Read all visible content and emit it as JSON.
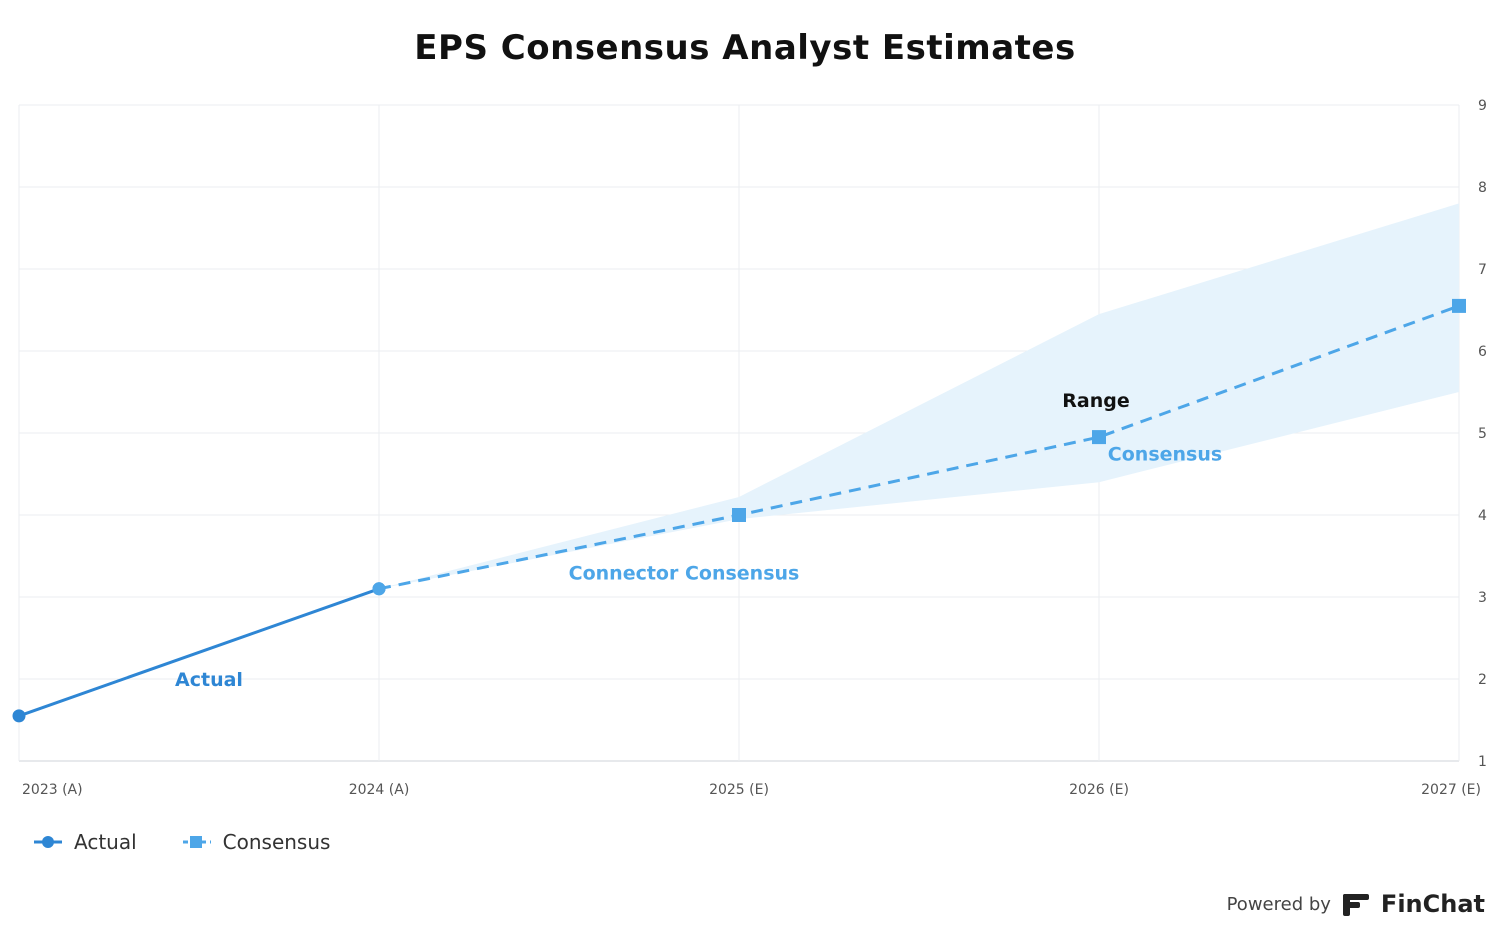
{
  "title": "EPS Consensus Analyst Estimates",
  "footer": {
    "powered_by": "Powered by",
    "brand": "FinChat",
    "logo_icon": "finchat-logo-icon"
  },
  "legend": [
    {
      "label": "Actual",
      "icon": "circle-line-marker-icon"
    },
    {
      "label": "Consensus",
      "icon": "square-dashed-marker-icon"
    }
  ],
  "colors": {
    "actual": "#2E86D4",
    "consensus": "#4DA6E8",
    "range_fill": "#E6F3FC",
    "grid": "#EBEEF1",
    "axis_text": "#555555"
  },
  "chart_data": {
    "type": "line",
    "title": "EPS Consensus Analyst Estimates",
    "categories": [
      "2023 (A)",
      "2024 (A)",
      "2025 (E)",
      "2026 (E)",
      "2027 (E)"
    ],
    "ylim": [
      1,
      9
    ],
    "yticks": [
      1,
      2,
      3,
      4,
      5,
      6,
      7,
      8,
      9
    ],
    "y_axis_side": "right",
    "grid": true,
    "legend_position": "bottom-left",
    "series": [
      {
        "name": "Actual",
        "values": [
          1.55,
          3.1,
          null,
          null,
          null
        ]
      },
      {
        "name": "Consensus",
        "values": [
          null,
          3.1,
          4.0,
          4.95,
          6.55
        ]
      }
    ],
    "range": {
      "low": [
        null,
        3.1,
        3.95,
        4.4,
        5.5
      ],
      "high": [
        null,
        3.1,
        4.22,
        6.45,
        7.8
      ]
    },
    "annotations": [
      {
        "text": "Actual",
        "x": "2023 (A)",
        "y": 2.0
      },
      {
        "text": "Connector Consensus",
        "x": "2025 (E)",
        "y": 3.3
      },
      {
        "text": "Range",
        "x": "2026 (E)",
        "y": 5.4
      },
      {
        "text": "Consensus",
        "x": "2026 (E)",
        "y": 4.75
      }
    ]
  }
}
